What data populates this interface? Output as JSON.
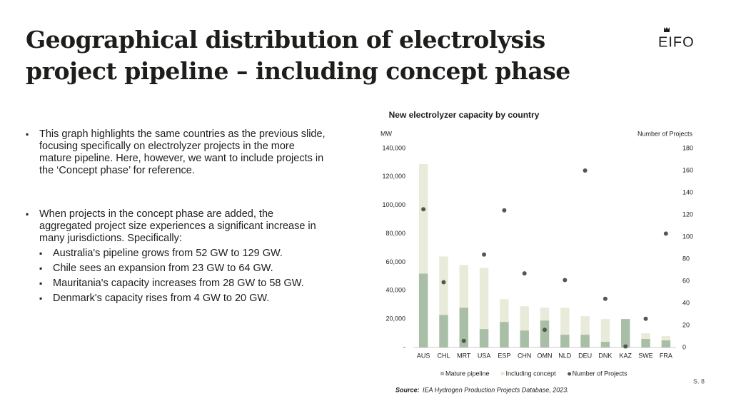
{
  "header": {
    "title": "Geographical distribution of electrolysis project pipeline – including concept phase",
    "logo": "EIFO"
  },
  "bullets": [
    {
      "text": "This graph highlights the same countries as the previous slide, focusing specifically on electrolyzer projects in the more mature pipeline. Here, however, we want to include projects in the ‘Concept phase’ for reference."
    },
    {
      "text": "When projects in the concept phase are added, the aggregated project size experiences a significant increase in many jurisdictions. Specifically:",
      "sub": [
        "Australia's pipeline grows from 52 GW to 129 GW.",
        "Chile sees an expansion from 23 GW to 64 GW.",
        "Mauritania's capacity increases from 28 GW to 58 GW.",
        "Denmark's capacity rises from 4 GW to 20 GW."
      ]
    }
  ],
  "chart_data": {
    "type": "bar",
    "title": "New electrolyzer capacity by country",
    "ylabel": "MW",
    "y2label": "Number of Projects",
    "categories": [
      "AUS",
      "CHL",
      "MRT",
      "USA",
      "ESP",
      "CHN",
      "OMN",
      "NLD",
      "DEU",
      "DNK",
      "KAZ",
      "SWE",
      "FRA"
    ],
    "series": [
      {
        "name": "Mature pipeline",
        "color": "#a9bea6",
        "values": [
          52000,
          23000,
          28000,
          13000,
          18000,
          12000,
          19000,
          9000,
          9000,
          4000,
          20000,
          6000,
          5000
        ]
      },
      {
        "name": "Including concept",
        "color": "#e8ebd9",
        "values": [
          77000,
          41000,
          30000,
          43000,
          16000,
          17000,
          9000,
          19000,
          13000,
          16000,
          0,
          4000,
          3000
        ]
      },
      {
        "name": "Number of Projects",
        "color": "#4e5a4c",
        "axis": "y2",
        "values": [
          125,
          59,
          6,
          84,
          124,
          67,
          16,
          61,
          160,
          44,
          1,
          26,
          103
        ]
      }
    ],
    "ylim": [
      0,
      140000
    ],
    "yticks": [
      {
        "value": 0,
        "label": "-"
      },
      {
        "value": 20000,
        "label": "20,000"
      },
      {
        "value": 40000,
        "label": "40,000"
      },
      {
        "value": 60000,
        "label": "60,000"
      },
      {
        "value": 80000,
        "label": "80,000"
      },
      {
        "value": 100000,
        "label": "100,000"
      },
      {
        "value": 120000,
        "label": "120,000"
      },
      {
        "value": 140000,
        "label": "140,000"
      }
    ],
    "y2lim": [
      0,
      180
    ],
    "y2ticks": [
      0,
      20,
      40,
      60,
      80,
      100,
      120,
      140,
      160,
      180
    ],
    "grid": false
  },
  "source": {
    "label": "Source:",
    "text": "IEA Hydrogen Production Projects Database, 2023."
  },
  "page": "S. 8"
}
